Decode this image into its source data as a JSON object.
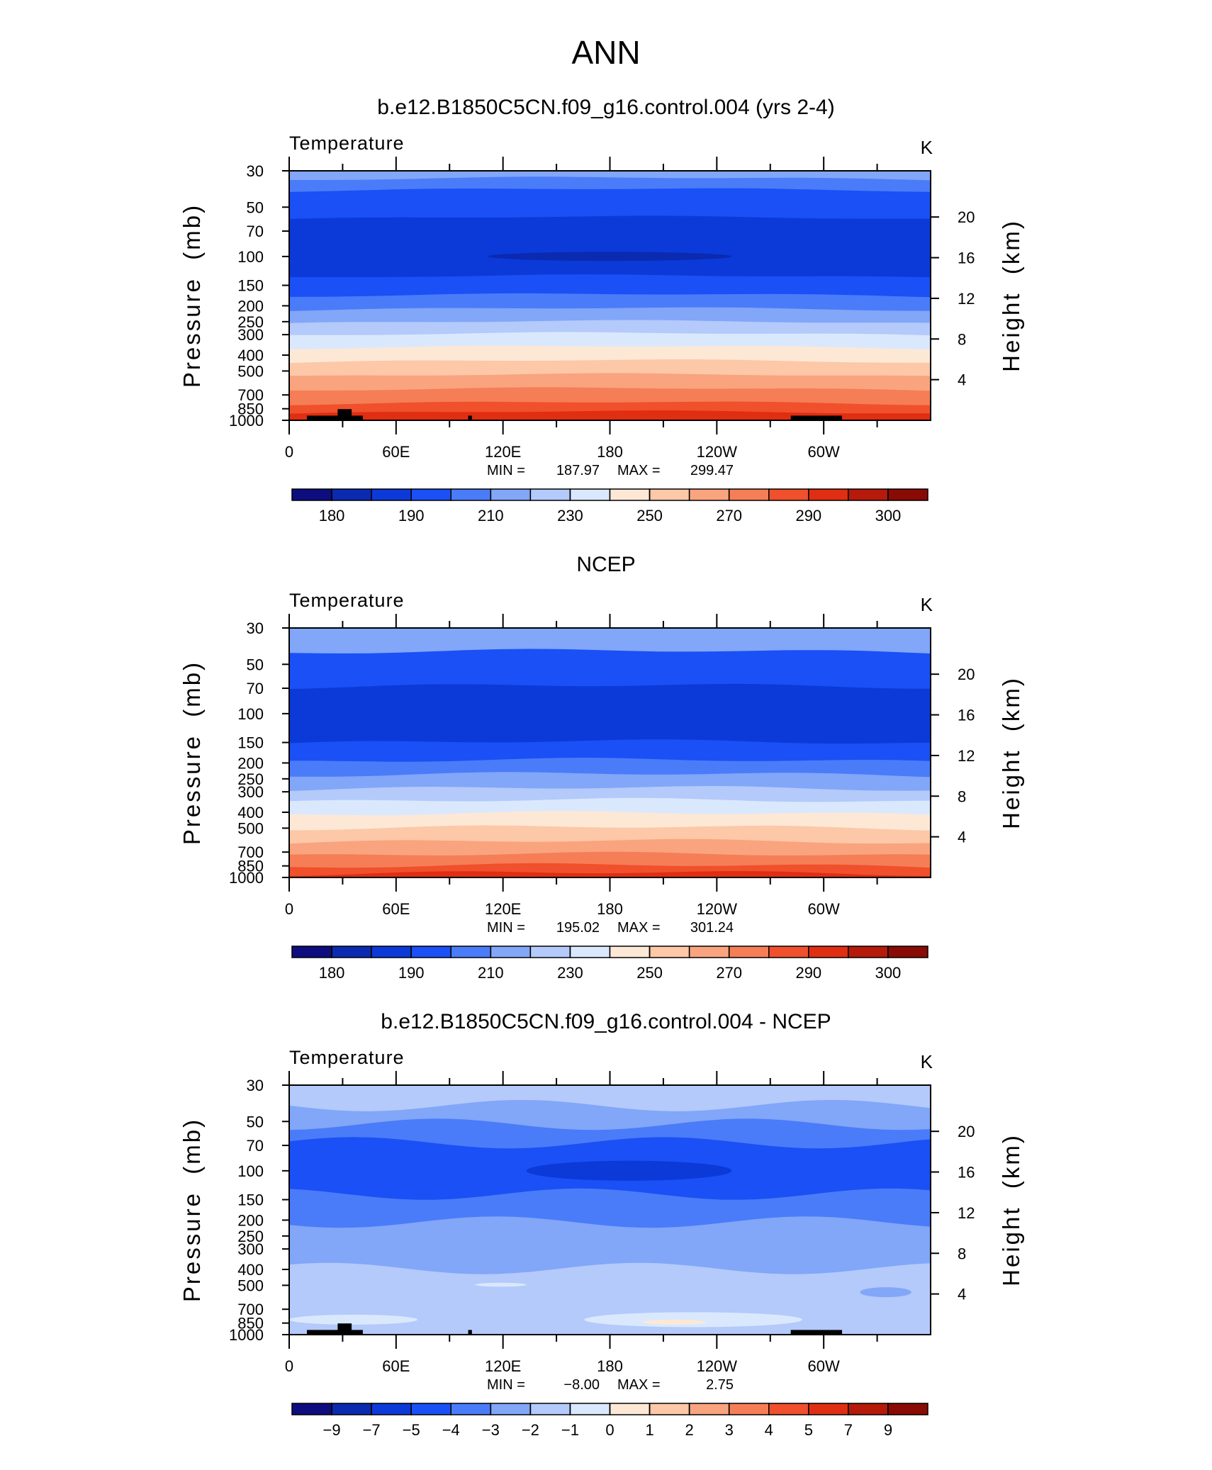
{
  "title": "ANN",
  "chart_data": [
    {
      "type": "contour",
      "title": "b.e12.B1850C5CN.f09_g16.control.004 (yrs 2-4)",
      "subtitle": "Temperature",
      "units": "K",
      "y_label": "Pressure  (mb)",
      "y2_label": "Height  (km)",
      "log_y": true,
      "xlim": [
        0,
        360
      ],
      "xticks": [
        0,
        {
          "value": 60,
          "label": "60E"
        },
        {
          "value": 120,
          "label": "120E"
        },
        180,
        {
          "value": 240,
          "label": "120W"
        },
        {
          "value": 300,
          "label": "60W"
        }
      ],
      "ylim": [
        1000,
        30
      ],
      "yticks": [
        30,
        50,
        70,
        100,
        150,
        200,
        250,
        300,
        400,
        500,
        700,
        850,
        1000
      ],
      "y2ticks": [
        4,
        8,
        12,
        16,
        20
      ],
      "min_label": "MIN =",
      "min": 187.97,
      "max_label": "MAX =",
      "max": 299.47,
      "colorbar": {
        "colors": [
          "#0d0d80",
          "#0a2ab0",
          "#0b3ad8",
          "#1a50f5",
          "#4a7cf9",
          "#82a6f8",
          "#b3cafa",
          "#d9e8fd",
          "#fde8d6",
          "#fcc8a8",
          "#f9a47e",
          "#f57e56",
          "#f0502c",
          "#e02e12",
          "#b51a0a",
          "#8a0a05"
        ],
        "ticks": [
          180,
          null,
          190,
          null,
          210,
          null,
          230,
          null,
          250,
          null,
          270,
          null,
          290,
          null,
          300
        ]
      }
    },
    {
      "type": "contour",
      "title": "NCEP",
      "subtitle": "Temperature",
      "units": "K",
      "y_label": "Pressure  (mb)",
      "y2_label": "Height  (km)",
      "log_y": true,
      "xlim": [
        0,
        360
      ],
      "xticks": [
        0,
        {
          "value": 60,
          "label": "60E"
        },
        {
          "value": 120,
          "label": "120E"
        },
        180,
        {
          "value": 240,
          "label": "120W"
        },
        {
          "value": 300,
          "label": "60W"
        }
      ],
      "ylim": [
        1000,
        30
      ],
      "yticks": [
        30,
        50,
        70,
        100,
        150,
        200,
        250,
        300,
        400,
        500,
        700,
        850,
        1000
      ],
      "y2ticks": [
        4,
        8,
        12,
        16,
        20
      ],
      "min_label": "MIN =",
      "min": 195.02,
      "max_label": "MAX =",
      "max": 301.24,
      "colorbar": {
        "colors": [
          "#0d0d80",
          "#0a2ab0",
          "#0b3ad8",
          "#1a50f5",
          "#4a7cf9",
          "#82a6f8",
          "#b3cafa",
          "#d9e8fd",
          "#fde8d6",
          "#fcc8a8",
          "#f9a47e",
          "#f57e56",
          "#f0502c",
          "#e02e12",
          "#b51a0a",
          "#8a0a05"
        ],
        "ticks": [
          180,
          null,
          190,
          null,
          210,
          null,
          230,
          null,
          250,
          null,
          270,
          null,
          290,
          null,
          300
        ]
      }
    },
    {
      "type": "contour",
      "title": "b.e12.B1850C5CN.f09_g16.control.004 - NCEP",
      "subtitle": "Temperature",
      "units": "K",
      "y_label": "Pressure  (mb)",
      "y2_label": "Height  (km)",
      "log_y": true,
      "xlim": [
        0,
        360
      ],
      "xticks": [
        0,
        {
          "value": 60,
          "label": "60E"
        },
        {
          "value": 120,
          "label": "120E"
        },
        180,
        {
          "value": 240,
          "label": "120W"
        },
        {
          "value": 300,
          "label": "60W"
        }
      ],
      "ylim": [
        1000,
        30
      ],
      "yticks": [
        30,
        50,
        70,
        100,
        150,
        200,
        250,
        300,
        400,
        500,
        700,
        850,
        1000
      ],
      "y2ticks": [
        4,
        8,
        12,
        16,
        20
      ],
      "min_label": "MIN =",
      "min": {
        "value": -8,
        "label": "−8.00"
      },
      "max_label": "MAX =",
      "max": 2.75,
      "colorbar": {
        "colors": [
          "#0d0d80",
          "#0a2ab0",
          "#0b3ad8",
          "#1a50f5",
          "#4a7cf9",
          "#82a6f8",
          "#b3cafa",
          "#d9e8fd",
          "#fde8d6",
          "#fcc8a8",
          "#f9a47e",
          "#f57e56",
          "#f0502c",
          "#e02e12",
          "#b51a0a",
          "#8a0a05"
        ],
        "ticks": [
          {
            "value": -9,
            "label": "−9"
          },
          {
            "value": -7,
            "label": "−7"
          },
          {
            "value": -5,
            "label": "−5"
          },
          {
            "value": -4,
            "label": "−4"
          },
          {
            "value": -3,
            "label": "−3"
          },
          {
            "value": -2,
            "label": "−2"
          },
          {
            "value": -1,
            "label": "−1"
          },
          0,
          1,
          2,
          3,
          4,
          5,
          7,
          9
        ]
      }
    }
  ]
}
